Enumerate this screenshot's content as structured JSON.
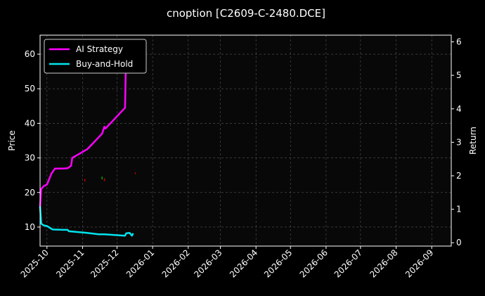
{
  "chart_data": {
    "type": "line",
    "title": "cnoption [C2609-C-2480.DCE]",
    "xlabel": "",
    "ylabel_left": "Price",
    "ylabel_right": "Return",
    "x_ticks": [
      "2025-10",
      "2025-11",
      "2025-12",
      "2026-01",
      "2026-02",
      "2026-03",
      "2026-04",
      "2026-05",
      "2026-06",
      "2026-07",
      "2026-08",
      "2026-09"
    ],
    "xlim": [
      "2025-09-25",
      "2026-09-18"
    ],
    "ylim_left": [
      4.5,
      65.5
    ],
    "ylim_right": [
      -0.1,
      6.2
    ],
    "y_ticks_left": [
      10,
      20,
      30,
      40,
      50,
      60
    ],
    "y_ticks_right": [
      0,
      1,
      2,
      3,
      4,
      5,
      6
    ],
    "grid": true,
    "legend_position": "top-left",
    "background": "#000000",
    "series": [
      {
        "name": "AI Strategy",
        "axis": "left",
        "color": "#ff00ff",
        "points": [
          [
            "2025-09-25",
            15.5
          ],
          [
            "2025-09-26",
            21.0
          ],
          [
            "2025-09-28",
            21.8
          ],
          [
            "2025-10-01",
            22.3
          ],
          [
            "2025-10-05",
            25.5
          ],
          [
            "2025-10-08",
            26.9
          ],
          [
            "2025-10-15",
            26.9
          ],
          [
            "2025-10-19",
            27.0
          ],
          [
            "2025-10-22",
            27.7
          ],
          [
            "2025-10-23",
            30.0
          ],
          [
            "2025-11-05",
            32.5
          ],
          [
            "2025-11-08",
            33.5
          ],
          [
            "2025-11-18",
            37.0
          ],
          [
            "2025-11-19",
            38.0
          ],
          [
            "2025-11-20",
            39.0
          ],
          [
            "2025-11-21",
            38.5
          ],
          [
            "2025-12-08",
            44.5
          ],
          [
            "2025-12-09",
            62.0
          ],
          [
            "2025-12-14",
            63.0
          ]
        ]
      },
      {
        "name": "Buy-and-Hold",
        "axis": "left",
        "color": "#00e5ee",
        "points": [
          [
            "2025-09-25",
            16.0
          ],
          [
            "2025-09-26",
            11.0
          ],
          [
            "2025-09-28",
            10.5
          ],
          [
            "2025-10-01",
            10.3
          ],
          [
            "2025-10-06",
            9.3
          ],
          [
            "2025-10-15",
            9.2
          ],
          [
            "2025-10-19",
            9.2
          ],
          [
            "2025-10-20",
            8.8
          ],
          [
            "2025-11-05",
            8.3
          ],
          [
            "2025-11-15",
            7.9
          ],
          [
            "2025-11-20",
            7.9
          ],
          [
            "2025-12-08",
            7.5
          ],
          [
            "2025-12-09",
            8.2
          ],
          [
            "2025-12-12",
            8.3
          ],
          [
            "2025-12-14",
            7.5
          ],
          [
            "2025-12-15",
            8.2
          ]
        ]
      }
    ],
    "markers": [
      {
        "date": "2025-11-03",
        "low": 23.2,
        "high": 23.9,
        "color": "#cc0000"
      },
      {
        "date": "2025-11-18",
        "low": 23.8,
        "high": 24.6,
        "color": "#00aa00"
      },
      {
        "date": "2025-11-20",
        "low": 23.3,
        "high": 24.1,
        "color": "#cc0000"
      },
      {
        "date": "2025-12-17",
        "low": 25.3,
        "high": 25.8,
        "color": "#cc0000"
      }
    ]
  }
}
